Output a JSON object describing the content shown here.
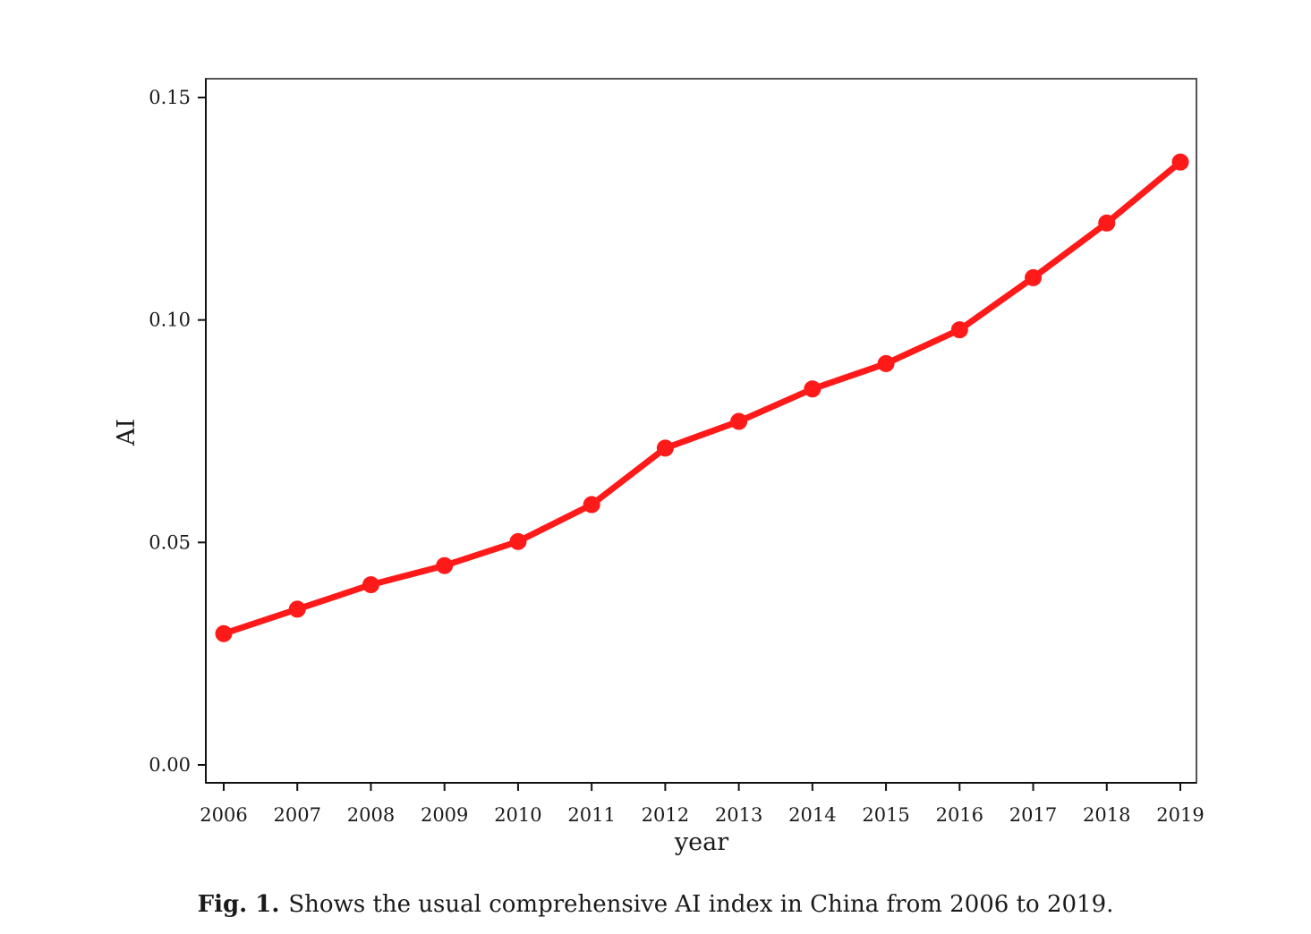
{
  "chart_data": {
    "type": "line",
    "xlabel": "year",
    "ylabel": "AI",
    "ylim": [
      0.0,
      0.15
    ],
    "yticks": [
      "0.00",
      "0.05",
      "0.10",
      "0.15"
    ],
    "ytick_values": [
      0.0,
      0.05,
      0.1,
      0.15
    ],
    "categories": [
      "2006",
      "2007",
      "2008",
      "2009",
      "2010",
      "2011",
      "2012",
      "2013",
      "2014",
      "2015",
      "2016",
      "2017",
      "2018",
      "2019"
    ],
    "series": [
      {
        "values": [
          0.0295,
          0.035,
          0.0405,
          0.0448,
          0.0502,
          0.0585,
          0.0712,
          0.0772,
          0.0845,
          0.0902,
          0.0978,
          0.1095,
          0.1218,
          0.1355
        ],
        "color": "#ff1a1a"
      }
    ],
    "grid": false,
    "legend": "none"
  },
  "caption": {
    "label": "Fig. 1.",
    "text": "Shows the usual comprehensive AI index in China from 2006 to 2019."
  }
}
